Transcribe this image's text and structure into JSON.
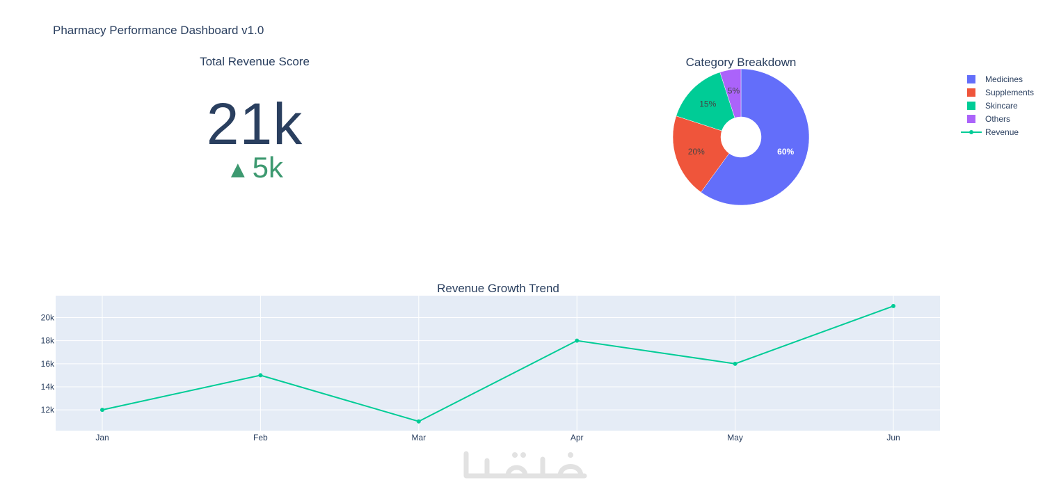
{
  "dashboard": {
    "title": "Pharmacy Performance Dashboard v1.0"
  },
  "kpi": {
    "title": "Total Revenue Score",
    "value": "21k",
    "delta": "5k",
    "delta_direction": "up",
    "value_color": "#2a3f5f",
    "delta_color": "#3d9970"
  },
  "chart_data": [
    {
      "type": "pie",
      "title": "Category Breakdown",
      "hole": true,
      "labels": [
        "Medicines",
        "Supplements",
        "Skincare",
        "Others"
      ],
      "values": [
        60,
        20,
        15,
        5
      ],
      "value_labels": [
        "60%",
        "20%",
        "15%",
        "5%"
      ],
      "colors": [
        "#636efa",
        "#ef553b",
        "#00cc96",
        "#ab63fa"
      ]
    },
    {
      "type": "line",
      "title": "Revenue Growth Trend",
      "series": [
        {
          "name": "Revenue",
          "color": "#00cc96",
          "values": [
            12000,
            15000,
            11000,
            18000,
            16000,
            21000
          ]
        }
      ],
      "categories": [
        "Jan",
        "Feb",
        "Mar",
        "Apr",
        "May",
        "Jun"
      ],
      "ylim": [
        10200,
        21900
      ],
      "yticks": [
        12000,
        14000,
        16000,
        18000,
        20000
      ],
      "ytick_labels": [
        "12k",
        "14k",
        "16k",
        "18k",
        "20k"
      ],
      "grid": true,
      "plot_bgcolor": "#e5ecf6"
    }
  ],
  "legend": {
    "placement": "top-right",
    "items": [
      {
        "label": "Medicines",
        "kind": "square",
        "color": "#636efa"
      },
      {
        "label": "Supplements",
        "kind": "square",
        "color": "#ef553b"
      },
      {
        "label": "Skincare",
        "kind": "square",
        "color": "#00cc96"
      },
      {
        "label": "Others",
        "kind": "square",
        "color": "#ab63fa"
      },
      {
        "label": "Revenue",
        "kind": "line-marker",
        "color": "#00cc96"
      }
    ]
  },
  "watermark": {
    "icon": "khamsat-logo-watermark",
    "color": "#e2e2e2"
  }
}
